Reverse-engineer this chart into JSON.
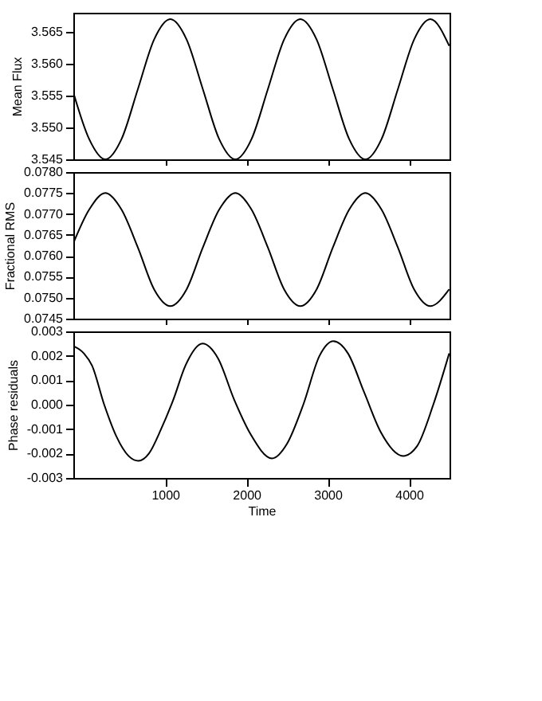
{
  "chart_data": [
    {
      "type": "line",
      "ylabel": "Mean Flux",
      "tick_labels": "y",
      "grid": false,
      "color": "#000000",
      "x": [
        -130,
        64,
        264,
        464,
        664,
        864,
        1064,
        1264,
        1464,
        1664,
        1864,
        2064,
        2264,
        2464,
        2664,
        2864,
        3064,
        3264,
        3464,
        3664,
        3864,
        4064,
        4264,
        4496
      ],
      "values": [
        3.5555,
        3.5482,
        3.545,
        3.5482,
        3.556,
        3.5638,
        3.567,
        3.5638,
        3.556,
        3.5482,
        3.545,
        3.5482,
        3.556,
        3.5638,
        3.567,
        3.5638,
        3.556,
        3.5482,
        3.545,
        3.5482,
        3.556,
        3.5638,
        3.567,
        3.5628
      ],
      "xlim": [
        -130,
        4500
      ],
      "xticks": [
        1000,
        2000,
        3000,
        4000
      ],
      "ylim": [
        3.545,
        3.568
      ],
      "yticks": [
        {
          "value": 3.545,
          "label": "3.545"
        },
        {
          "value": 3.55,
          "label": "3.550"
        },
        {
          "value": 3.555,
          "label": "3.555"
        },
        {
          "value": 3.56,
          "label": "3.560"
        },
        {
          "value": 3.565,
          "label": "3.565"
        }
      ]
    },
    {
      "type": "line",
      "ylabel": "Fractional RMS",
      "tick_labels": "y",
      "grid": false,
      "color": "#000000",
      "x": [
        -130,
        64,
        264,
        464,
        664,
        864,
        1064,
        1264,
        1464,
        1664,
        1864,
        2064,
        2264,
        2464,
        2664,
        2864,
        3064,
        3264,
        3464,
        3664,
        3864,
        4064,
        4264,
        4496
      ],
      "values": [
        0.0763,
        0.0771,
        0.0775,
        0.0771,
        0.0762,
        0.0752,
        0.0748,
        0.0752,
        0.0762,
        0.0771,
        0.0775,
        0.0771,
        0.0762,
        0.0752,
        0.0748,
        0.0752,
        0.0762,
        0.0771,
        0.0775,
        0.0771,
        0.0762,
        0.0752,
        0.0748,
        0.0752
      ],
      "xlim": [
        -130,
        4500
      ],
      "xticks": [
        1000,
        2000,
        3000,
        4000
      ],
      "ylim": [
        0.0745,
        0.078
      ],
      "yticks": [
        {
          "value": 0.0745,
          "label": "0.0745"
        },
        {
          "value": 0.075,
          "label": "0.0750"
        },
        {
          "value": 0.0755,
          "label": "0.0755"
        },
        {
          "value": 0.076,
          "label": "0.0760"
        },
        {
          "value": 0.0765,
          "label": "0.0765"
        },
        {
          "value": 0.077,
          "label": "0.0770"
        },
        {
          "value": 0.0775,
          "label": "0.0775"
        },
        {
          "value": 0.078,
          "label": "0.0780"
        }
      ]
    },
    {
      "type": "line",
      "ylabel": "Phase residuals",
      "xlabel": "Time",
      "grid": false,
      "color": "#000000",
      "x": [
        -130,
        0,
        100,
        250,
        400,
        550,
        671,
        800,
        950,
        1100,
        1250,
        1460,
        1650,
        1850,
        2050,
        2316,
        2500,
        2700,
        2900,
        3070,
        3250,
        3450,
        3650,
        3930,
        4100,
        4300,
        4496
      ],
      "values": [
        0.0024,
        0.0021,
        0.0016,
        0.0,
        -0.0013,
        -0.0021,
        -0.0023,
        -0.002,
        -0.001,
        0.0002,
        0.0016,
        0.0025,
        0.0019,
        0.0002,
        -0.0012,
        -0.0022,
        -0.0016,
        0.0,
        0.002,
        0.0026,
        0.0021,
        0.0005,
        -0.0011,
        -0.0021,
        -0.0017,
        0.0,
        0.0021
      ],
      "xlim": [
        -130,
        4500
      ],
      "xticks": [
        1000,
        2000,
        3000,
        4000
      ],
      "ylim": [
        -0.003,
        0.003
      ],
      "yticks": [
        {
          "value": -0.003,
          "label": "-0.003"
        },
        {
          "value": -0.002,
          "label": "-0.002"
        },
        {
          "value": -0.001,
          "label": "-0.001"
        },
        {
          "value": 0,
          "label": "0.000"
        },
        {
          "value": 0.001,
          "label": "0.001"
        },
        {
          "value": 0.002,
          "label": "0.002"
        },
        {
          "value": 0.003,
          "label": "0.003"
        }
      ]
    }
  ]
}
